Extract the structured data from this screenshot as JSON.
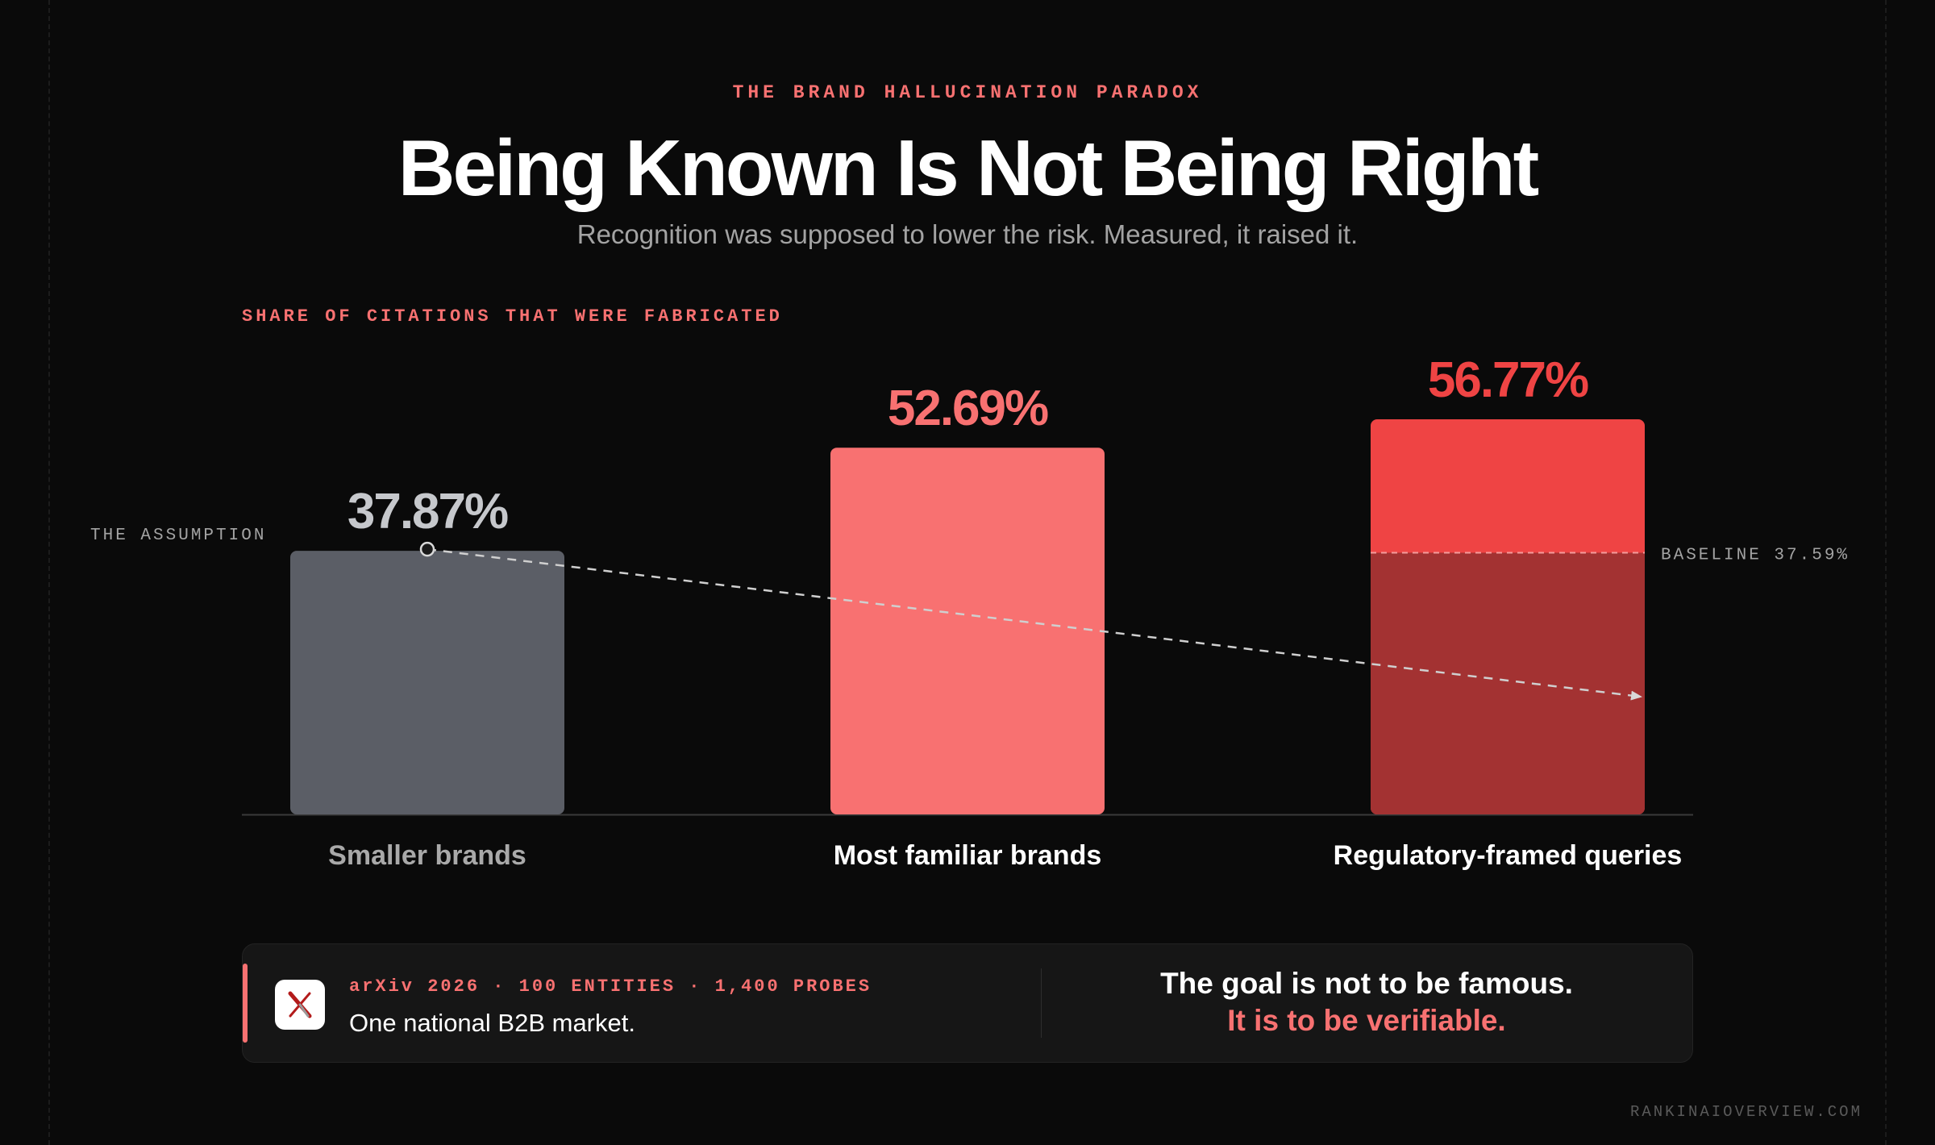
{
  "header": {
    "eyebrow": "THE BRAND HALLUCINATION PARADOX",
    "title": "Being Known Is Not Being Right",
    "subtitle": "Recognition was supposed to lower the risk. Measured, it raised it."
  },
  "chart_data": {
    "type": "bar",
    "title": "Being Known Is Not Being Right",
    "ylabel": "SHARE OF CITATIONS THAT WERE FABRICATED",
    "categories": [
      "Smaller brands",
      "Most familiar brands",
      "Regulatory-framed queries"
    ],
    "values": [
      37.87,
      52.69,
      56.77
    ],
    "value_labels": [
      "37.87%",
      "52.69%",
      "56.77%"
    ],
    "unit": "%",
    "ylim": [
      0,
      56.77
    ],
    "grid": false,
    "baseline": {
      "value": 37.59,
      "label": "BASELINE 37.59%"
    },
    "annotations": [
      {
        "text": "THE ASSUMPTION",
        "note": "dashed downward arrow from Smaller brands across to Regulatory-framed queries"
      }
    ]
  },
  "colors": {
    "background": "#0a0a0a",
    "accent": "#f87171",
    "bar_smaller": "#5b5e66",
    "bar_familiar": "#f87171",
    "bar_regulatory_top": "#ef4444",
    "bar_regulatory_bottom": "#a33232",
    "label_smaller": "#c6c8cc",
    "label_regulatory": "#ef4444"
  },
  "footer": {
    "source": "arXiv 2026 · 100 ENTITIES · 1,400 PROBES",
    "source_desc": "One national B2B market.",
    "takeaway_line1": "The goal is not to be famous.",
    "takeaway_line2": "It is to be verifiable.",
    "icon": "arxiv-logo-icon"
  },
  "site": "RANKINAIOVERVIEW.COM"
}
